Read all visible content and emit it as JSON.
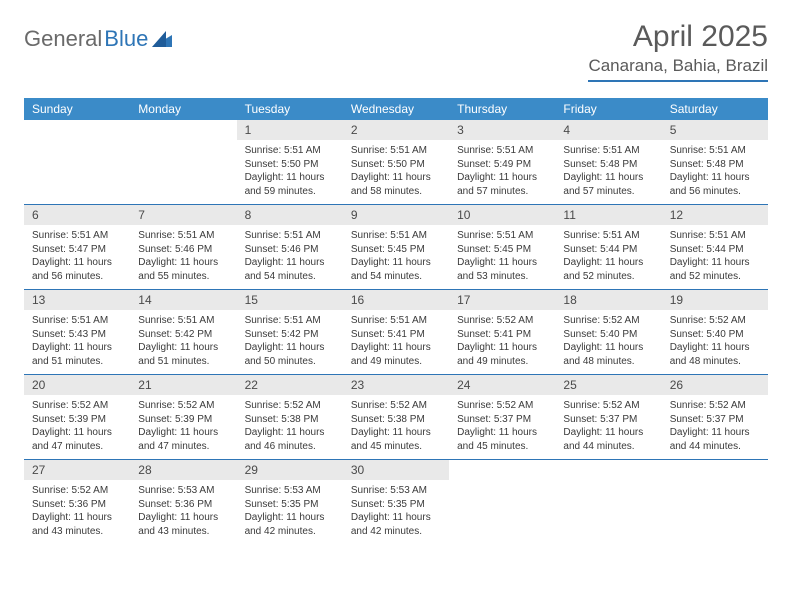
{
  "logo": {
    "part1": "General",
    "part2": "Blue"
  },
  "title": "April 2025",
  "location": "Canarana, Bahia, Brazil",
  "colors": {
    "header_bg": "#3b8bc8",
    "accent": "#2e75b6",
    "daynum_bg": "#e9e9e9",
    "text": "#3a3a3a",
    "title_text": "#5a5a5a"
  },
  "weekdays": [
    "Sunday",
    "Monday",
    "Tuesday",
    "Wednesday",
    "Thursday",
    "Friday",
    "Saturday"
  ],
  "weeks": [
    [
      null,
      null,
      {
        "n": "1",
        "sr": "Sunrise: 5:51 AM",
        "ss": "Sunset: 5:50 PM",
        "dl": "Daylight: 11 hours and 59 minutes."
      },
      {
        "n": "2",
        "sr": "Sunrise: 5:51 AM",
        "ss": "Sunset: 5:50 PM",
        "dl": "Daylight: 11 hours and 58 minutes."
      },
      {
        "n": "3",
        "sr": "Sunrise: 5:51 AM",
        "ss": "Sunset: 5:49 PM",
        "dl": "Daylight: 11 hours and 57 minutes."
      },
      {
        "n": "4",
        "sr": "Sunrise: 5:51 AM",
        "ss": "Sunset: 5:48 PM",
        "dl": "Daylight: 11 hours and 57 minutes."
      },
      {
        "n": "5",
        "sr": "Sunrise: 5:51 AM",
        "ss": "Sunset: 5:48 PM",
        "dl": "Daylight: 11 hours and 56 minutes."
      }
    ],
    [
      {
        "n": "6",
        "sr": "Sunrise: 5:51 AM",
        "ss": "Sunset: 5:47 PM",
        "dl": "Daylight: 11 hours and 56 minutes."
      },
      {
        "n": "7",
        "sr": "Sunrise: 5:51 AM",
        "ss": "Sunset: 5:46 PM",
        "dl": "Daylight: 11 hours and 55 minutes."
      },
      {
        "n": "8",
        "sr": "Sunrise: 5:51 AM",
        "ss": "Sunset: 5:46 PM",
        "dl": "Daylight: 11 hours and 54 minutes."
      },
      {
        "n": "9",
        "sr": "Sunrise: 5:51 AM",
        "ss": "Sunset: 5:45 PM",
        "dl": "Daylight: 11 hours and 54 minutes."
      },
      {
        "n": "10",
        "sr": "Sunrise: 5:51 AM",
        "ss": "Sunset: 5:45 PM",
        "dl": "Daylight: 11 hours and 53 minutes."
      },
      {
        "n": "11",
        "sr": "Sunrise: 5:51 AM",
        "ss": "Sunset: 5:44 PM",
        "dl": "Daylight: 11 hours and 52 minutes."
      },
      {
        "n": "12",
        "sr": "Sunrise: 5:51 AM",
        "ss": "Sunset: 5:44 PM",
        "dl": "Daylight: 11 hours and 52 minutes."
      }
    ],
    [
      {
        "n": "13",
        "sr": "Sunrise: 5:51 AM",
        "ss": "Sunset: 5:43 PM",
        "dl": "Daylight: 11 hours and 51 minutes."
      },
      {
        "n": "14",
        "sr": "Sunrise: 5:51 AM",
        "ss": "Sunset: 5:42 PM",
        "dl": "Daylight: 11 hours and 51 minutes."
      },
      {
        "n": "15",
        "sr": "Sunrise: 5:51 AM",
        "ss": "Sunset: 5:42 PM",
        "dl": "Daylight: 11 hours and 50 minutes."
      },
      {
        "n": "16",
        "sr": "Sunrise: 5:51 AM",
        "ss": "Sunset: 5:41 PM",
        "dl": "Daylight: 11 hours and 49 minutes."
      },
      {
        "n": "17",
        "sr": "Sunrise: 5:52 AM",
        "ss": "Sunset: 5:41 PM",
        "dl": "Daylight: 11 hours and 49 minutes."
      },
      {
        "n": "18",
        "sr": "Sunrise: 5:52 AM",
        "ss": "Sunset: 5:40 PM",
        "dl": "Daylight: 11 hours and 48 minutes."
      },
      {
        "n": "19",
        "sr": "Sunrise: 5:52 AM",
        "ss": "Sunset: 5:40 PM",
        "dl": "Daylight: 11 hours and 48 minutes."
      }
    ],
    [
      {
        "n": "20",
        "sr": "Sunrise: 5:52 AM",
        "ss": "Sunset: 5:39 PM",
        "dl": "Daylight: 11 hours and 47 minutes."
      },
      {
        "n": "21",
        "sr": "Sunrise: 5:52 AM",
        "ss": "Sunset: 5:39 PM",
        "dl": "Daylight: 11 hours and 47 minutes."
      },
      {
        "n": "22",
        "sr": "Sunrise: 5:52 AM",
        "ss": "Sunset: 5:38 PM",
        "dl": "Daylight: 11 hours and 46 minutes."
      },
      {
        "n": "23",
        "sr": "Sunrise: 5:52 AM",
        "ss": "Sunset: 5:38 PM",
        "dl": "Daylight: 11 hours and 45 minutes."
      },
      {
        "n": "24",
        "sr": "Sunrise: 5:52 AM",
        "ss": "Sunset: 5:37 PM",
        "dl": "Daylight: 11 hours and 45 minutes."
      },
      {
        "n": "25",
        "sr": "Sunrise: 5:52 AM",
        "ss": "Sunset: 5:37 PM",
        "dl": "Daylight: 11 hours and 44 minutes."
      },
      {
        "n": "26",
        "sr": "Sunrise: 5:52 AM",
        "ss": "Sunset: 5:37 PM",
        "dl": "Daylight: 11 hours and 44 minutes."
      }
    ],
    [
      {
        "n": "27",
        "sr": "Sunrise: 5:52 AM",
        "ss": "Sunset: 5:36 PM",
        "dl": "Daylight: 11 hours and 43 minutes."
      },
      {
        "n": "28",
        "sr": "Sunrise: 5:53 AM",
        "ss": "Sunset: 5:36 PM",
        "dl": "Daylight: 11 hours and 43 minutes."
      },
      {
        "n": "29",
        "sr": "Sunrise: 5:53 AM",
        "ss": "Sunset: 5:35 PM",
        "dl": "Daylight: 11 hours and 42 minutes."
      },
      {
        "n": "30",
        "sr": "Sunrise: 5:53 AM",
        "ss": "Sunset: 5:35 PM",
        "dl": "Daylight: 11 hours and 42 minutes."
      },
      null,
      null,
      null
    ]
  ]
}
